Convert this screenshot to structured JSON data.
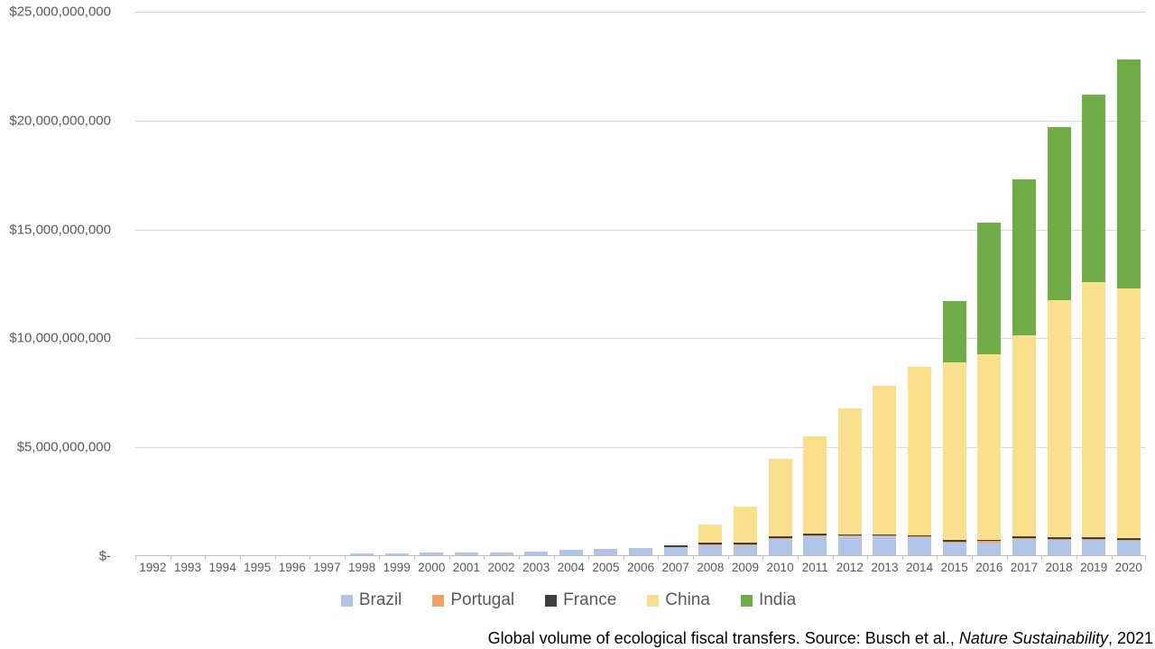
{
  "chart_data": {
    "type": "bar",
    "stacked": true,
    "grid": true,
    "legend_position": "bottom",
    "ylim": [
      0,
      25000000000
    ],
    "yticks": [
      {
        "value": 0,
        "label": "$-"
      },
      {
        "value": 5000000000,
        "label": "$5,000,000,000"
      },
      {
        "value": 10000000000,
        "label": "$10,000,000,000"
      },
      {
        "value": 15000000000,
        "label": "$15,000,000,000"
      },
      {
        "value": 20000000000,
        "label": "$20,000,000,000"
      },
      {
        "value": 25000000000,
        "label": "$25,000,000,000"
      }
    ],
    "categories": [
      "1992",
      "1993",
      "1994",
      "1995",
      "1996",
      "1997",
      "1998",
      "1999",
      "2000",
      "2001",
      "2002",
      "2003",
      "2004",
      "2005",
      "2006",
      "2007",
      "2008",
      "2009",
      "2010",
      "2011",
      "2012",
      "2013",
      "2014",
      "2015",
      "2016",
      "2017",
      "2018",
      "2019",
      "2020"
    ],
    "series": [
      {
        "name": "Brazil",
        "color": "#B0C5E7",
        "values": [
          0,
          0,
          0,
          0,
          0,
          0,
          100000000,
          100000000,
          110000000,
          120000000,
          120000000,
          170000000,
          230000000,
          290000000,
          320000000,
          360000000,
          450000000,
          450000000,
          750000000,
          880000000,
          850000000,
          850000000,
          810000000,
          590000000,
          600000000,
          750000000,
          710000000,
          710000000,
          670000000
        ]
      },
      {
        "name": "Portugal",
        "color": "#F0A263",
        "values": [
          0,
          0,
          0,
          0,
          0,
          0,
          0,
          0,
          0,
          0,
          0,
          0,
          0,
          0,
          0,
          10000000,
          50000000,
          50000000,
          50000000,
          50000000,
          50000000,
          50000000,
          50000000,
          50000000,
          50000000,
          50000000,
          50000000,
          50000000,
          50000000
        ]
      },
      {
        "name": "France",
        "color": "#3E3E3E",
        "values": [
          0,
          0,
          0,
          0,
          0,
          0,
          0,
          0,
          0,
          0,
          0,
          0,
          0,
          0,
          0,
          80000000,
          70000000,
          70000000,
          70000000,
          70000000,
          70000000,
          70000000,
          70000000,
          70000000,
          70000000,
          70000000,
          70000000,
          70000000,
          70000000
        ]
      },
      {
        "name": "China",
        "color": "#FAE08C",
        "values": [
          0,
          0,
          0,
          0,
          0,
          0,
          0,
          0,
          0,
          0,
          0,
          0,
          0,
          0,
          0,
          0,
          850000000,
          1670000000,
          3580000000,
          4470000000,
          5760000000,
          6820000000,
          7740000000,
          8130000000,
          8520000000,
          9240000000,
          10900000000,
          11720000000,
          11450000000
        ]
      },
      {
        "name": "India",
        "color": "#70AD47",
        "values": [
          0,
          0,
          0,
          0,
          0,
          0,
          0,
          0,
          0,
          0,
          0,
          0,
          0,
          0,
          0,
          0,
          0,
          0,
          0,
          0,
          0,
          0,
          0,
          2850000000,
          6040000000,
          7140000000,
          7920000000,
          8590000000,
          10510000000
        ]
      }
    ]
  },
  "caption": {
    "prefix": "Global volume of ecological fiscal transfers. Source: Busch et al., ",
    "italic": "Nature Sustainability",
    "suffix": ", 2021"
  },
  "colors": {
    "gridline": "#D9D9D9",
    "axis": "#BFBFBF",
    "tick_label": "#595959",
    "legend_text": "#595959"
  }
}
